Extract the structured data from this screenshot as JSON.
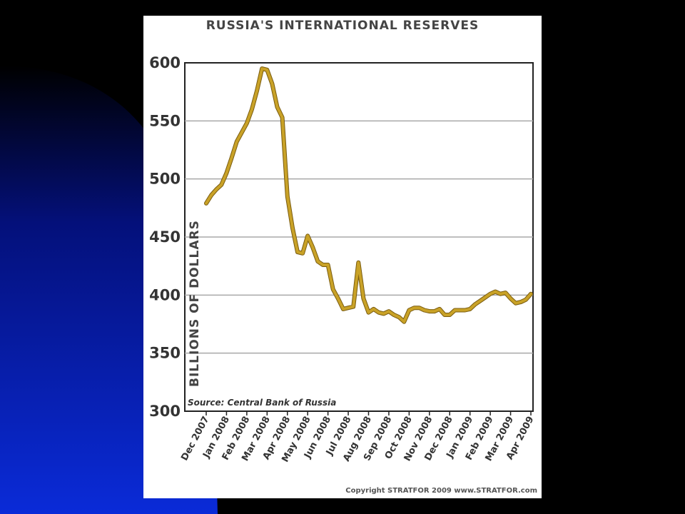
{
  "slide": {
    "background": "#000000",
    "accent_gradient": [
      "#000000",
      "#0a2bd8"
    ]
  },
  "chart_data": {
    "type": "line",
    "title": "RUSSIA'S INTERNATIONAL RESERVES",
    "ylabel": "BILLIONS OF DOLLARS",
    "xlabel": "",
    "ylim": [
      300,
      600
    ],
    "yticks": [
      300,
      350,
      400,
      450,
      500,
      550,
      600
    ],
    "grid": true,
    "line_color": "#c9a227",
    "categories": [
      "Dec 2007",
      "Jan 2008",
      "Feb 2008",
      "Mar 2008",
      "Apr 2008",
      "May 2008",
      "Jun 2008",
      "Jul 2008",
      "Aug 2008",
      "Sep 2008",
      "Oct 2008",
      "Nov 2008",
      "Dec 2008",
      "Jan 2009",
      "Feb 2009",
      "Mar 2009",
      "Apr 2009"
    ],
    "series": [
      {
        "x": [
          0,
          0.25,
          0.5,
          0.75,
          1,
          1.25,
          1.5,
          1.75,
          2,
          2.25,
          2.5,
          2.75,
          3,
          3.25,
          3.5,
          3.75,
          4,
          4.25,
          4.5,
          4.75,
          5,
          5.25,
          5.5,
          5.75,
          6,
          6.25,
          6.5,
          6.75,
          7,
          7.25,
          7.5,
          7.75,
          8,
          8.25,
          8.5,
          8.75,
          9,
          9.25,
          9.5,
          9.75,
          10,
          10.25,
          10.5,
          10.75,
          11,
          11.25,
          11.5,
          11.75,
          12,
          12.25,
          12.5,
          12.75,
          13,
          13.25,
          13.5,
          13.75,
          14,
          14.25,
          14.5,
          14.75,
          15,
          15.25,
          15.5,
          15.75,
          16
        ],
        "values": [
          479,
          486,
          491,
          495,
          505,
          518,
          532,
          540,
          548,
          560,
          576,
          595,
          594,
          582,
          562,
          553,
          485,
          458,
          437,
          436,
          451,
          441,
          429,
          426,
          426,
          405,
          397,
          388,
          389,
          390,
          428,
          397,
          385,
          388,
          385,
          384,
          386,
          383,
          381,
          377,
          387,
          389,
          389,
          387,
          386,
          386,
          388,
          383,
          383,
          387,
          387,
          387,
          388,
          392,
          395,
          398,
          401,
          403,
          401,
          402,
          397,
          393,
          394,
          396,
          401
        ]
      }
    ],
    "source": "Source: Central Bank of Russia",
    "copyright": "Copyright STRATFOR 2009   www.STRATFOR.com"
  }
}
